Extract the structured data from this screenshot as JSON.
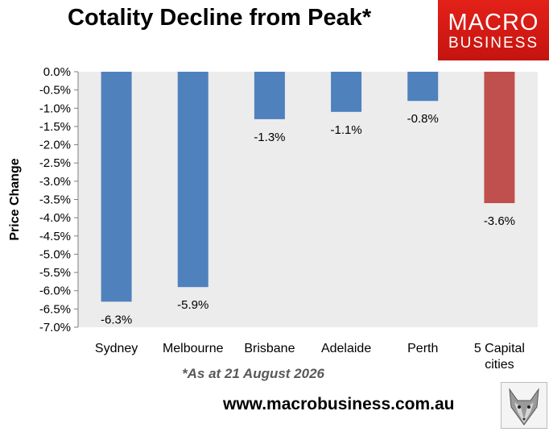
{
  "title": "Cotality Decline from Peak*",
  "logo": {
    "line1": "MACRO",
    "line2": "BUSINESS"
  },
  "footnote": "*As at 21 August 2026",
  "website": "www.macrobusiness.com.au",
  "colors": {
    "bar": "#4f81bd",
    "highlight": "#c0504d",
    "plot_bg": "#ececec",
    "logo_bg": "#d9150f"
  },
  "icons": {
    "mascot": "wolf-head-icon"
  },
  "chart_data": {
    "type": "bar",
    "title": "Cotality Decline from Peak*",
    "xlabel": "",
    "ylabel": "Price Change",
    "categories": [
      "Sydney",
      "Melbourne",
      "Brisbane",
      "Adelaide",
      "Perth",
      "5 Capital cities"
    ],
    "values": [
      -6.3,
      -5.9,
      -1.3,
      -1.1,
      -0.8,
      -3.6
    ],
    "data_labels": [
      "-6.3%",
      "-5.9%",
      "-1.3%",
      "-1.1%",
      "-0.8%",
      "-3.6%"
    ],
    "highlight_category": "5 Capital cities",
    "ylim": [
      -7.0,
      0.0
    ],
    "ytick_step": 0.5,
    "ytick_labels": [
      "0.0%",
      "-0.5%",
      "-1.0%",
      "-1.5%",
      "-2.0%",
      "-2.5%",
      "-3.0%",
      "-3.5%",
      "-4.0%",
      "-4.5%",
      "-5.0%",
      "-5.5%",
      "-6.0%",
      "-6.5%",
      "-7.0%"
    ],
    "grid": false,
    "legend": "none"
  }
}
